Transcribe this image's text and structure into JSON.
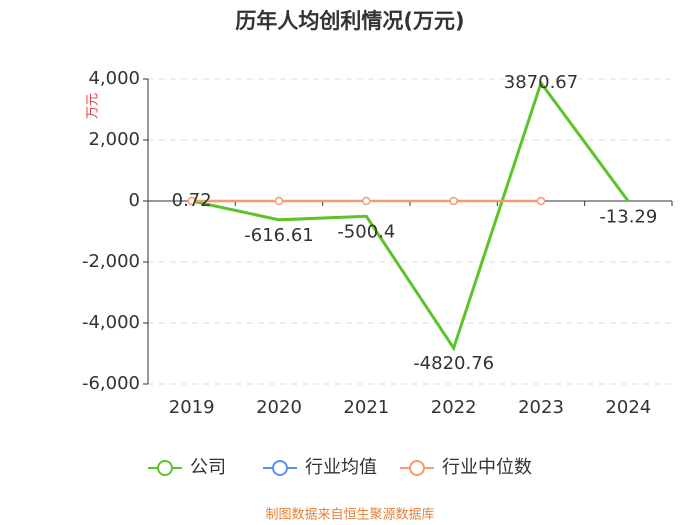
{
  "chart_data": {
    "type": "line",
    "title": "历年人均创利情况(万元)",
    "y_label": "万元",
    "categories": [
      "2019",
      "2020",
      "2021",
      "2022",
      "2023",
      "2024"
    ],
    "series": [
      {
        "name": "公司",
        "color": "#5cc42a",
        "values": [
          0.72,
          -616.61,
          -500.4,
          -4820.76,
          3870.67,
          -13.29
        ]
      },
      {
        "name": "行业均值",
        "color": "#5b8ff9",
        "values": [
          null,
          null,
          null,
          null,
          null,
          null
        ]
      },
      {
        "name": "行业中位数",
        "color": "#f59a73",
        "values": [
          0,
          0,
          0,
          0,
          0,
          null
        ]
      }
    ],
    "ylim": [
      -6000,
      4000
    ],
    "yticks": [
      {
        "value": -6000,
        "label": "-6,000"
      },
      {
        "value": -4000,
        "label": "-4,000"
      },
      {
        "value": -2000,
        "label": "-2,000"
      },
      0,
      {
        "value": 2000,
        "label": "2,000"
      },
      {
        "value": 4000,
        "label": "4,000"
      }
    ],
    "grid": true,
    "data_labels_series": 0,
    "source": "制图数据来自恒生聚源数据库"
  }
}
